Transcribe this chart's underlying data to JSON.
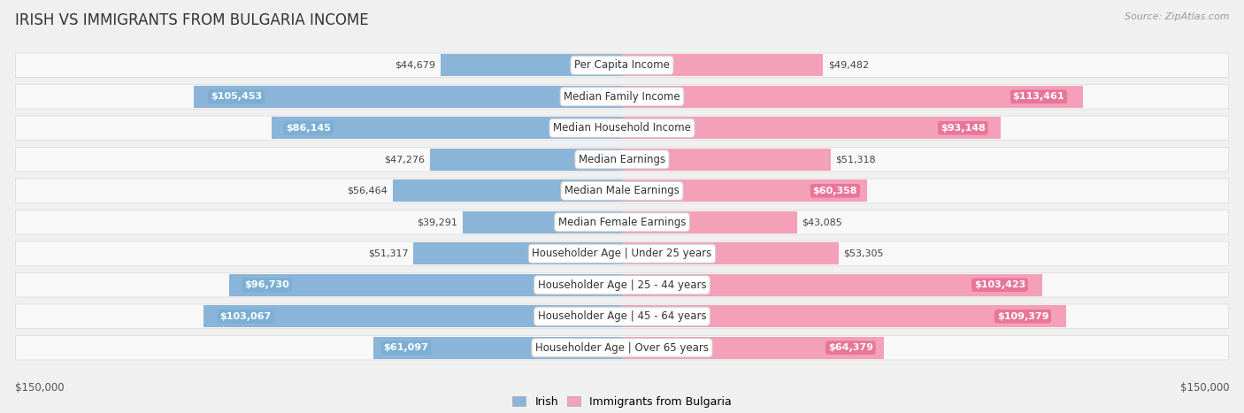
{
  "title": "IRISH VS IMMIGRANTS FROM BULGARIA INCOME",
  "source": "Source: ZipAtlas.com",
  "categories": [
    "Per Capita Income",
    "Median Family Income",
    "Median Household Income",
    "Median Earnings",
    "Median Male Earnings",
    "Median Female Earnings",
    "Householder Age | Under 25 years",
    "Householder Age | 25 - 44 years",
    "Householder Age | 45 - 64 years",
    "Householder Age | Over 65 years"
  ],
  "irish_values": [
    44679,
    105453,
    86145,
    47276,
    56464,
    39291,
    51317,
    96730,
    103067,
    61097
  ],
  "bulgaria_values": [
    49482,
    113461,
    93148,
    51318,
    60358,
    43085,
    53305,
    103423,
    109379,
    64379
  ],
  "irish_labels": [
    "$44,679",
    "$105,453",
    "$86,145",
    "$47,276",
    "$56,464",
    "$39,291",
    "$51,317",
    "$96,730",
    "$103,067",
    "$61,097"
  ],
  "bulgaria_labels": [
    "$49,482",
    "$113,461",
    "$93,148",
    "$51,318",
    "$60,358",
    "$43,085",
    "$53,305",
    "$103,423",
    "$109,379",
    "$64,379"
  ],
  "irish_color": "#8ab4d8",
  "bulgaria_color": "#f4a0b8",
  "irish_label_inside_color": "#ffffff",
  "bulgaria_label_inside_color": "#ffffff",
  "irish_label_bg": "#7bafd4",
  "bulgaria_label_bg": "#e8759a",
  "max_value": 150000,
  "background_color": "#f0f0f0",
  "row_bg_color": "#f8f8f8",
  "row_edge_color": "#dddddd",
  "legend_irish": "Irish",
  "legend_bulgaria": "Immigrants from Bulgaria",
  "xlabel_left": "$150,000",
  "xlabel_right": "$150,000",
  "inside_threshold": 60000,
  "title_fontsize": 12,
  "label_fontsize": 8,
  "cat_fontsize": 8.5
}
